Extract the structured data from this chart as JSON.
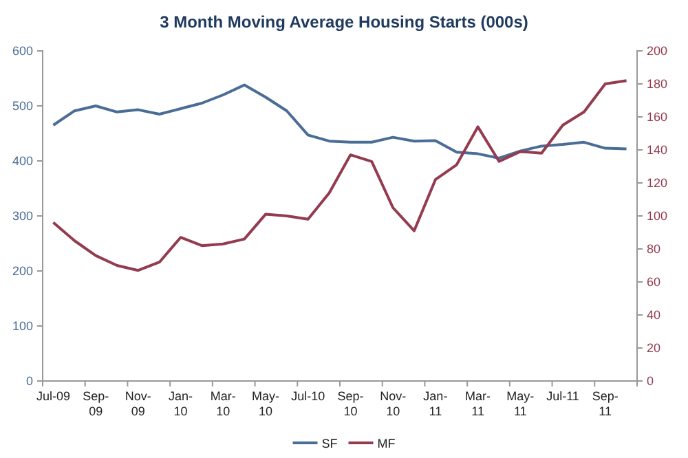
{
  "chart_data": {
    "type": "line",
    "title": "3 Month Moving Average Housing Starts (000s)",
    "categories": [
      "Jul-09",
      null,
      "Sep-09",
      null,
      "Nov-09",
      null,
      "Jan-10",
      null,
      "Mar-10",
      null,
      "May-10",
      null,
      "Jul-10",
      null,
      "Sep-10",
      null,
      "Nov-10",
      null,
      "Jan-11",
      null,
      "Mar-11",
      null,
      "May-11",
      null,
      "Jul-11",
      null,
      "Sep-11",
      null
    ],
    "series": [
      {
        "name": "SF",
        "color": "#4a6d96",
        "values": [
          465,
          491,
          500,
          489,
          493,
          485,
          495,
          505,
          520,
          538,
          516,
          491,
          447,
          436,
          434,
          434,
          443,
          436,
          437,
          416,
          413,
          405,
          418,
          427,
          430,
          434,
          423,
          422
        ]
      },
      {
        "name": "MF",
        "color": "#943b4f",
        "axis": "y2",
        "values": [
          96,
          85,
          76,
          70,
          67,
          72,
          87,
          82,
          83,
          86,
          101,
          100,
          98,
          114,
          137,
          133,
          105,
          91,
          122,
          131,
          154,
          133,
          139,
          138,
          155,
          163,
          180,
          182
        ]
      }
    ],
    "ylim": [
      0,
      600
    ],
    "yticks": [
      0,
      100,
      200,
      300,
      400,
      500,
      600
    ],
    "y2lim": [
      0,
      200
    ],
    "y2ticks": [
      0,
      20,
      40,
      60,
      80,
      100,
      120,
      140,
      160,
      180,
      200
    ],
    "grid": false,
    "legend": "bottom",
    "marker": "none",
    "line_style": "solid"
  }
}
